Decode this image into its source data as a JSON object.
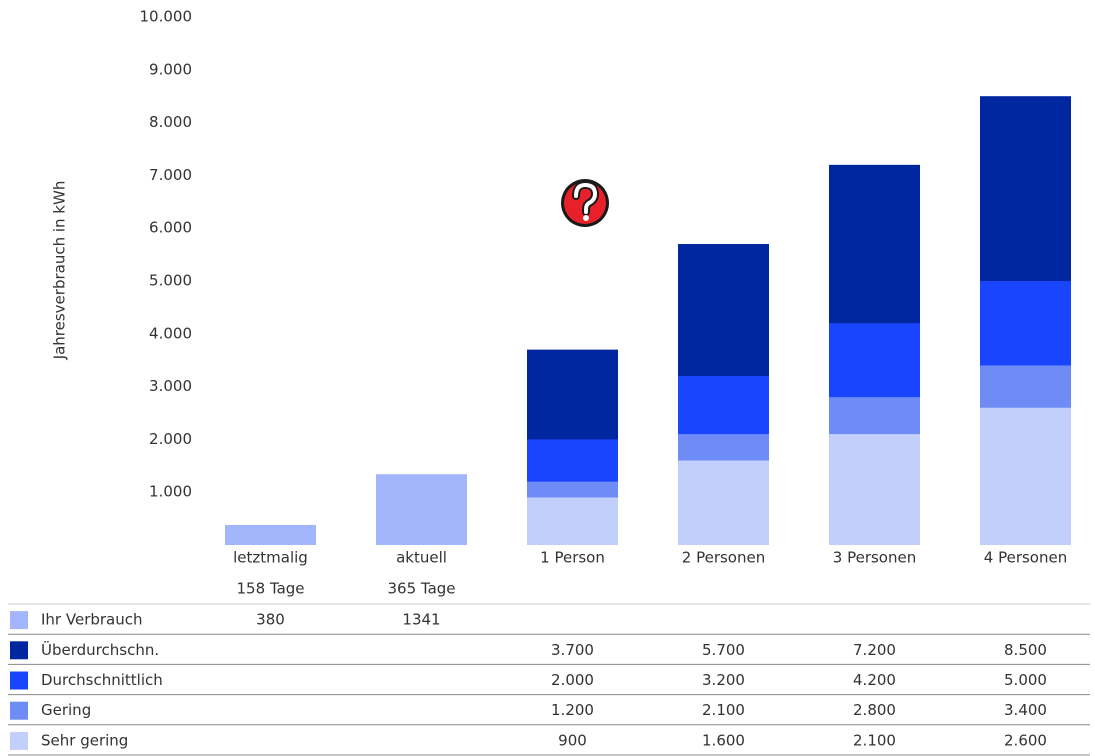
{
  "chart_data": {
    "type": "bar",
    "y_label": "Jahresverbrauch in kWh",
    "categories": [
      "letztmalig",
      "aktuell",
      "1 Person",
      "2 Personen",
      "3 Personen",
      "4 Personen"
    ],
    "category_sublabels": [
      "158 Tage",
      "365 Tage",
      null,
      null,
      null,
      null
    ],
    "ylim": [
      0,
      10000
    ],
    "yticks": [
      {
        "value": 1000,
        "label": "1.000"
      },
      {
        "value": 2000,
        "label": "2.000"
      },
      {
        "value": 3000,
        "label": "3.000"
      },
      {
        "value": 4000,
        "label": "4.000"
      },
      {
        "value": 5000,
        "label": "5.000"
      },
      {
        "value": 6000,
        "label": "6.000"
      },
      {
        "value": 7000,
        "label": "7.000"
      },
      {
        "value": 8000,
        "label": "8.000"
      },
      {
        "value": 9000,
        "label": "9.000"
      },
      {
        "value": 10000,
        "label": "10.000"
      }
    ],
    "series": [
      {
        "name": "Ihr Verbrauch",
        "color": "#a3b5fb",
        "values": [
          380,
          1341,
          null,
          null,
          null,
          null
        ]
      },
      {
        "name": "Überdurchschn.",
        "color": "#0026a0",
        "values": [
          null,
          null,
          3700,
          5700,
          7200,
          8500
        ],
        "value_labels": [
          null,
          null,
          "3.700",
          "5.700",
          "7.200",
          "8.500"
        ]
      },
      {
        "name": "Durchschnittlich",
        "color": "#1a45ff",
        "values": [
          null,
          null,
          2000,
          3200,
          4200,
          5000
        ],
        "value_labels": [
          null,
          null,
          "2.000",
          "3.200",
          "4.200",
          "5.000"
        ]
      },
      {
        "name": "Gering",
        "color": "#6f8cf6",
        "values": [
          null,
          null,
          1200,
          2100,
          2800,
          3400
        ],
        "value_labels": [
          null,
          null,
          "1.200",
          "2.100",
          "2.800",
          "3.400"
        ]
      },
      {
        "name": "Sehr gering",
        "color": "#c3cffb",
        "values": [
          null,
          null,
          900,
          1600,
          2100,
          2600
        ],
        "value_labels": [
          null,
          null,
          "900",
          "1.600",
          "2.100",
          "2.600"
        ]
      }
    ]
  }
}
